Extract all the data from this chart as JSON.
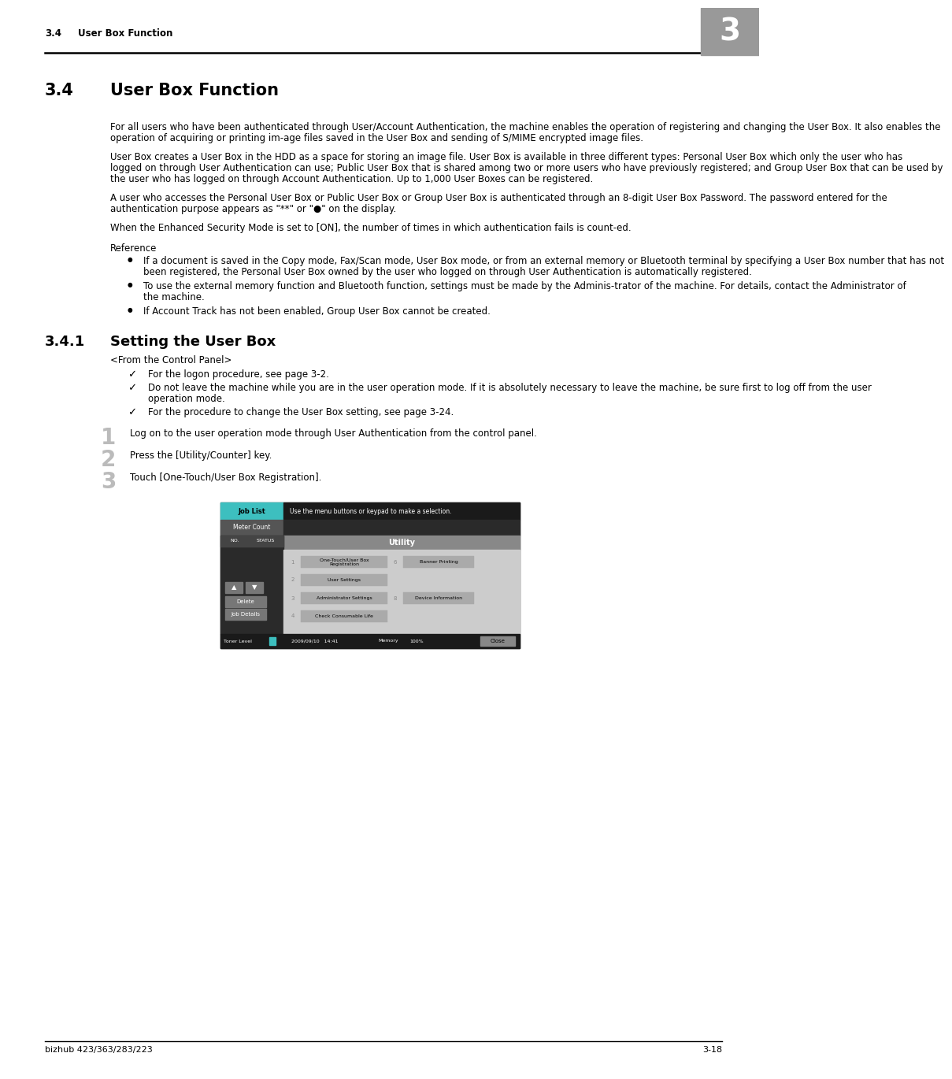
{
  "bg_color": "#ffffff",
  "header_section_num": "3.4",
  "header_section_title": "User Box Function",
  "header_chapter": "3",
  "chapter_box_color": "#999999",
  "title_num": "3.4",
  "title_text": "User Box Function",
  "sub_num": "3.4.1",
  "sub_text": "Setting the User Box",
  "footer_left": "bizhub 423/363/283/223",
  "footer_right": "3-18",
  "body_paragraphs": [
    "For all users who have been authenticated through User/Account Authentication, the machine enables the operation of registering and changing the User Box. It also enables the operation of acquiring or printing im-age files saved in the User Box and sending of S/MIME encrypted image files.",
    "User Box creates a User Box in the HDD as a space for storing an image file. User Box is available in three different types: Personal User Box which only the user who has logged on through User Authentication can use; Public User Box that is shared among two or more users who have previously registered; and Group User Box that can be used by the user who has logged on through Account Authentication. Up to 1,000 User Boxes can be registered.",
    "A user who accesses the Personal User Box or Public User Box or Group User Box is authenticated through an 8-digit User Box Password. The password entered for the authentication purpose appears as \"**\" or \"●\" on the display.",
    "When the Enhanced Security Mode is set to [ON], the number of times in which authentication fails is count-ed."
  ],
  "reference_label": "Reference",
  "bullet_items": [
    "If a document is saved in the Copy mode, Fax/Scan mode, User Box mode, or from an external memory or Bluetooth terminal by specifying a User Box number that has not been registered, the Personal User Box owned by the user who logged on through User Authentication is automatically registered.",
    "To use the external memory function and Bluetooth function, settings must be made by the Adminis-trator of the machine. For details, contact the Administrator of the machine.",
    "If Account Track has not been enabled, Group User Box cannot be created."
  ],
  "control_panel_label": "<From the Control Panel>",
  "check_items": [
    "For the logon procedure, see page 3-2.",
    "Do not leave the machine while you are in the user operation mode. If it is absolutely necessary to leave the machine, be sure first to log off from the user operation mode.",
    "For the procedure to change the User Box setting, see page 3-24."
  ],
  "numbered_steps": [
    "Log on to the user operation mode through User Authentication from the control panel.",
    "Press the [Utility/Counter] key.",
    "Touch [One-Touch/User Box Registration]."
  ]
}
